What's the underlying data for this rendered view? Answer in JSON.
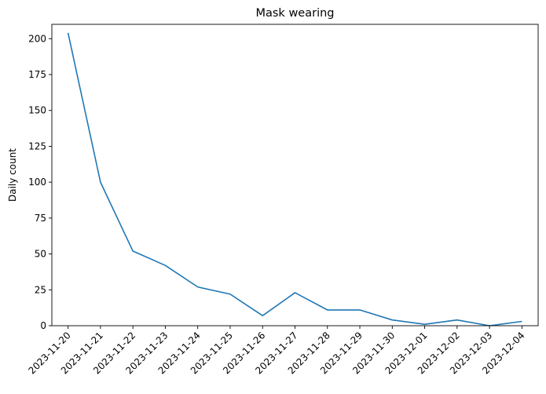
{
  "chart_data": {
    "type": "line",
    "title": "Mask wearing",
    "xlabel": "",
    "ylabel": "Daily count",
    "x": [
      "2023-11-20",
      "2023-11-21",
      "2023-11-22",
      "2023-11-23",
      "2023-11-24",
      "2023-11-25",
      "2023-11-26",
      "2023-11-27",
      "2023-11-28",
      "2023-11-29",
      "2023-11-30",
      "2023-12-01",
      "2023-12-02",
      "2023-12-03",
      "2023-12-04"
    ],
    "series": [
      {
        "values": [
          204,
          100,
          52,
          42,
          27,
          22,
          7,
          23,
          11,
          11,
          4,
          1,
          4,
          0,
          3
        ],
        "color": "#1f77b4"
      }
    ],
    "ylim": [
      0,
      210
    ],
    "yticks": [
      0,
      25,
      50,
      75,
      100,
      125,
      150,
      175,
      200
    ],
    "grid": false,
    "legend": "none"
  }
}
